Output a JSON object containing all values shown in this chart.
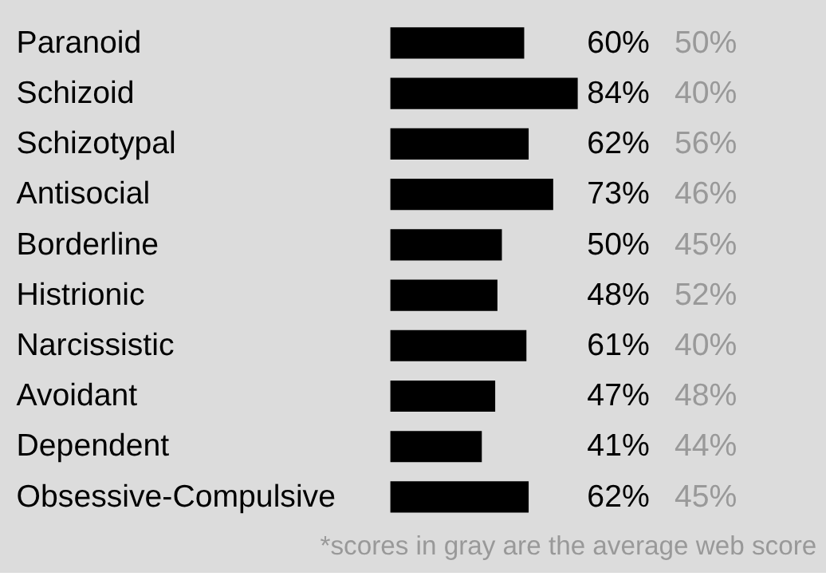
{
  "chart_data": {
    "type": "bar",
    "orientation": "horizontal",
    "categories": [
      "Paranoid",
      "Schizoid",
      "Schizotypal",
      "Antisocial",
      "Borderline",
      "Histrionic",
      "Narcissistic",
      "Avoidant",
      "Dependent",
      "Obsessive-Compulsive"
    ],
    "series": [
      {
        "color": "#000000",
        "values": [
          60,
          84,
          62,
          73,
          50,
          48,
          61,
          47,
          41,
          62
        ],
        "value_labels": [
          "60%",
          "84%",
          "62%",
          "73%",
          "50%",
          "48%",
          "61%",
          "47%",
          "41%",
          "62%"
        ]
      }
    ],
    "data_labels": true,
    "tick_labels": "y",
    "annotations": [
      "50%",
      "40%",
      "56%",
      "46%",
      "45%",
      "52%",
      "40%",
      "48%",
      "44%",
      "45%",
      "*scores in gray are the average web score"
    ]
  }
}
